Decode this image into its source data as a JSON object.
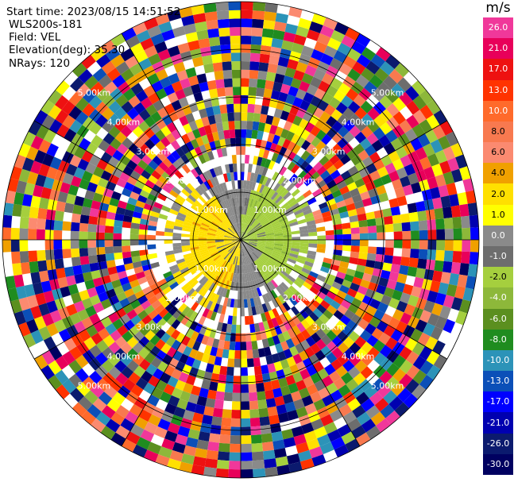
{
  "header": {
    "start_time": "Start time: 2023/08/15 14:51:52",
    "device": "WLS200s-181",
    "field": "Field: VEL",
    "elevation": "Elevation(deg): 35.30",
    "nrays": "NRays: 120"
  },
  "colorbar": {
    "unit": "m/s",
    "ticks": [
      "26.0",
      "21.0",
      "17.0",
      "13.0",
      "10.0",
      "8.0",
      "6.0",
      "4.0",
      "2.0",
      "1.0",
      "0.0",
      "-1.0",
      "-2.0",
      "-4.0",
      "-6.0",
      "-8.0",
      "-10.0",
      "-13.0",
      "-17.0",
      "-21.0",
      "-26.0",
      "-30.0"
    ],
    "colors": [
      "#f0389a",
      "#e8005a",
      "#ee1111",
      "#ff3300",
      "#ff6a2b",
      "#f8794f",
      "#fb8a70",
      "#f0a000",
      "#ffe000",
      "#ffff00",
      "#8a8a8a",
      "#6d6d6d",
      "#a5cf3e",
      "#8db83a",
      "#5b8f1f",
      "#1f8c1f",
      "#2c93b8",
      "#0b4fb8",
      "#0000ff",
      "#0000b0",
      "#0b1a6e",
      "#000060"
    ]
  },
  "chart_data": {
    "type": "ppi",
    "field": "VEL",
    "unit": "m/s",
    "elevation_deg": 35.3,
    "nrays": 120,
    "range_ring_labels": [
      "1.00km",
      "2.00km",
      "3.00km",
      "4.00km",
      "5.00km"
    ],
    "range_ring_label_sets": [
      [
        "1.00km",
        "1.00km",
        "1.00km",
        "1.00km"
      ],
      [
        "2.00km",
        "2.00km",
        "2.00km",
        "2.00km"
      ],
      [
        "3.00km",
        "3.00km",
        "3.00km",
        "3.00km"
      ],
      [
        "4.00km",
        "4.00km",
        "4.00km",
        "4.00km"
      ],
      [
        "5.00km",
        "5.00km",
        "5.00km",
        "5.00km"
      ]
    ],
    "colorbar_range": [
      -30.0,
      26.0
    ]
  }
}
